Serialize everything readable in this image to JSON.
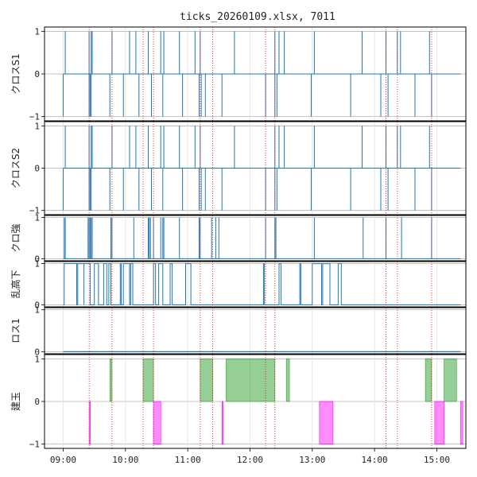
{
  "chart_data": {
    "type": "line",
    "title": "ticks_20260109.xlsx, 7011",
    "x_ticks": [
      "09:00",
      "10:00",
      "11:00",
      "12:00",
      "13:00",
      "14:00",
      "15:00"
    ],
    "x_tick_minutes": [
      540,
      600,
      660,
      720,
      780,
      840,
      900
    ],
    "x_range_minutes": [
      522,
      928
    ],
    "series_color": "#1f77b4",
    "vline_color": "#ff0000",
    "long_fill_color": "#2ca02c",
    "short_fill_color": "#ff00ff",
    "vlines": [
      565,
      587,
      617,
      627,
      672,
      684,
      735,
      744,
      851,
      862,
      895
    ],
    "panels": [
      {
        "ylabel": "クロスS1",
        "ylim": [
          -1.1,
          1.1
        ],
        "yticks": [
          -1,
          0,
          1
        ],
        "ytick_labels": [
          "−1",
          "0",
          "1"
        ],
        "spikes_up": [
          542,
          565,
          567,
          568,
          587,
          604,
          610,
          622,
          634,
          637,
          652,
          667,
          672,
          705,
          744,
          748,
          753,
          782,
          828,
          851,
          862,
          865,
          893
        ],
        "spikes_down": [
          540,
          565,
          566,
          567,
          585,
          598,
          613,
          625,
          636,
          655,
          671,
          673,
          677,
          693,
          735,
          744,
          746,
          779,
          817,
          846,
          853,
          879,
          895
        ]
      },
      {
        "ylabel": "クロスS2",
        "ylim": [
          -1.1,
          1.1
        ],
        "yticks": [
          -1,
          0,
          1
        ],
        "ytick_labels": [
          "−1",
          "0",
          "1"
        ],
        "spikes_up": [
          542,
          565,
          567,
          568,
          587,
          604,
          610,
          622,
          634,
          637,
          652,
          667,
          672,
          705,
          744,
          748,
          753,
          782,
          828,
          851,
          862,
          865,
          893
        ],
        "spikes_down": [
          540,
          565,
          566,
          567,
          585,
          598,
          613,
          625,
          636,
          655,
          671,
          673,
          677,
          693,
          735,
          744,
          746,
          779,
          817,
          846,
          853,
          879,
          895
        ]
      },
      {
        "ylabel": "クロ強",
        "ylim": [
          -0.05,
          1.05
        ],
        "yticks": [
          0,
          1
        ],
        "ytick_labels": [
          "0",
          "1"
        ],
        "spikes_up": [
          541,
          542,
          564,
          565,
          566,
          567,
          568,
          586,
          587,
          608,
          622,
          623,
          624,
          627,
          634,
          636,
          637,
          652,
          671,
          672,
          683,
          687,
          690,
          735,
          744,
          745,
          782,
          829,
          851,
          866,
          895
        ]
      },
      {
        "ylabel": "乱高下",
        "ylim": [
          -0.05,
          1.05
        ],
        "yticks": [
          0,
          1
        ],
        "ytick_labels": [
          "0",
          "1"
        ],
        "pulses": [
          [
            541,
            553
          ],
          [
            554,
            560
          ],
          [
            560,
            566
          ],
          [
            570,
            574
          ],
          [
            579,
            582
          ],
          [
            584,
            586
          ],
          [
            595,
            596
          ],
          [
            598,
            604
          ],
          [
            605,
            607
          ],
          [
            627,
            629
          ],
          [
            632,
            636
          ],
          [
            643,
            645
          ],
          [
            658,
            663
          ],
          [
            733,
            734
          ],
          [
            748,
            750
          ],
          [
            768,
            769
          ],
          [
            780,
            789
          ],
          [
            790,
            797
          ],
          [
            805,
            808
          ]
        ]
      },
      {
        "ylabel": "ロス1",
        "ylim": [
          -0.05,
          1.05
        ],
        "yticks": [
          0,
          1
        ],
        "ytick_labels": [
          "0",
          "1"
        ],
        "flat_value": 0
      },
      {
        "ylabel": "建玉",
        "ylim": [
          -1.1,
          1.1
        ],
        "yticks": [
          -1,
          0,
          1
        ],
        "ytick_labels": [
          "−1",
          "0",
          "1"
        ],
        "long_positions": [
          [
            585,
            587
          ],
          [
            617,
            627
          ],
          [
            672,
            684
          ],
          [
            697,
            744
          ],
          [
            755,
            758
          ],
          [
            889,
            895
          ],
          [
            907,
            919
          ]
        ],
        "short_positions": [
          [
            565,
            566
          ],
          [
            627,
            634
          ],
          [
            693,
            694
          ],
          [
            787,
            800
          ],
          [
            898,
            907
          ],
          [
            923,
            925
          ]
        ]
      }
    ]
  }
}
